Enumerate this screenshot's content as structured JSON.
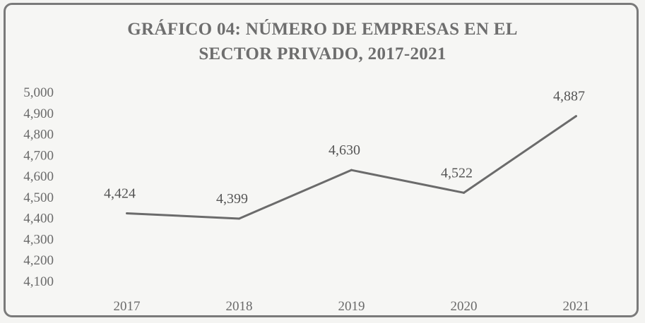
{
  "chart_data": {
    "type": "line",
    "title": "GRÁFICO 04: NÚMERO DE EMPRESAS EN EL SECTOR PRIVADO, 2017-2021",
    "title_lines": [
      "GRÁFICO 04: NÚMERO DE EMPRESAS EN EL",
      "SECTOR PRIVADO, 2017-2021"
    ],
    "categories": [
      "2017",
      "2018",
      "2019",
      "2020",
      "2021"
    ],
    "values": [
      4424,
      4399,
      4630,
      4522,
      4887
    ],
    "data_labels": [
      "4,424",
      "4,399",
      "4,630",
      "4,522",
      "4,887"
    ],
    "ylim": [
      4100,
      5000
    ],
    "yticks": [
      5000,
      4900,
      4800,
      4700,
      4600,
      4500,
      4400,
      4300,
      4200,
      4100
    ],
    "ytick_labels": [
      "5,000",
      "4,900",
      "4,800",
      "4,700",
      "4,600",
      "4,500",
      "4,400",
      "4,300",
      "4,200",
      "4,100"
    ],
    "xlabel": "",
    "ylabel": "",
    "grid": false,
    "legend": "none",
    "line_color": "#6b6b6b"
  }
}
